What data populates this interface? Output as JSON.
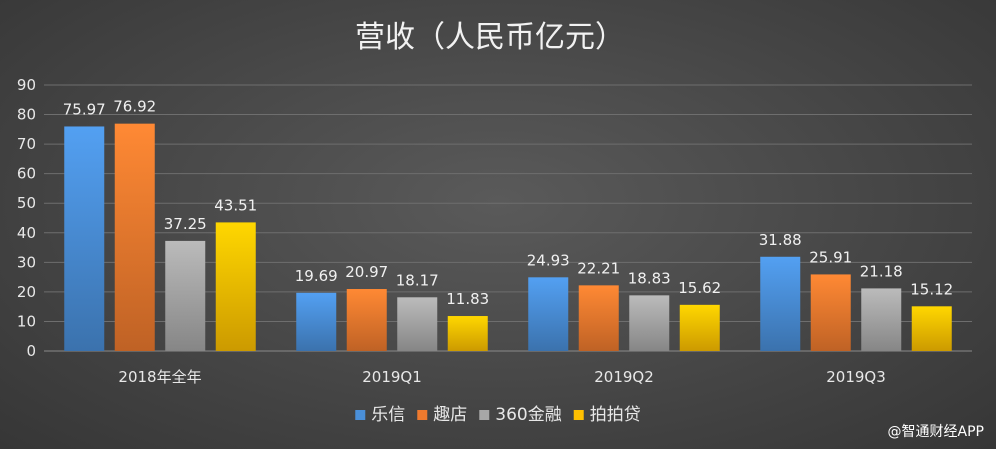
{
  "chart_data": {
    "type": "bar",
    "title": "营收（人民币亿元）",
    "categories": [
      "2018年全年",
      "2019Q1",
      "2019Q2",
      "2019Q3"
    ],
    "series": [
      {
        "name": "乐信",
        "color": "#4a8fd8",
        "values": [
          75.97,
          19.69,
          24.93,
          31.88
        ]
      },
      {
        "name": "趣店",
        "color": "#ef7a2e",
        "values": [
          76.92,
          20.97,
          22.21,
          25.91
        ]
      },
      {
        "name": "360金融",
        "color": "#a7a7a7",
        "values": [
          37.25,
          18.17,
          18.83,
          21.18
        ]
      },
      {
        "name": "拍拍贷",
        "color": "#ffc000",
        "values": [
          43.51,
          11.83,
          15.62,
          15.12
        ]
      }
    ],
    "ylim": [
      0,
      90
    ],
    "yticks": [
      0,
      10,
      20,
      30,
      40,
      50,
      60,
      70,
      80,
      90
    ],
    "grid": true,
    "legend": "bottom"
  },
  "watermark": "@智通财经APP"
}
